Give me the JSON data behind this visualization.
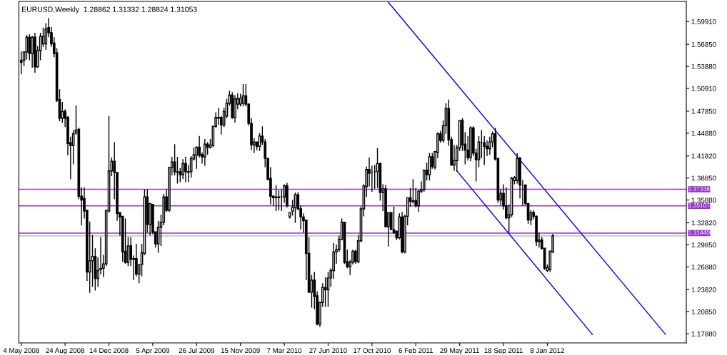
{
  "chart_data": {
    "type": "candlestick",
    "title": "EURUSD,Weekly  1.28862 1.31332 1.28824 1.31053",
    "x": [
      "2008-05-04",
      "2008-05-11",
      "2008-05-18",
      "2008-05-25",
      "2008-06-01",
      "2008-06-08",
      "2008-06-15",
      "2008-06-22",
      "2008-06-29",
      "2008-07-06",
      "2008-07-13",
      "2008-07-20",
      "2008-07-27",
      "2008-08-03",
      "2008-08-10",
      "2008-08-17",
      "2008-08-24",
      "2008-08-31",
      "2008-09-07",
      "2008-09-14",
      "2008-09-21",
      "2008-09-28",
      "2008-10-05",
      "2008-10-12",
      "2008-10-19",
      "2008-10-26",
      "2008-11-02",
      "2008-11-09",
      "2008-11-16",
      "2008-11-23",
      "2008-11-30",
      "2008-12-07",
      "2008-12-14",
      "2008-12-21",
      "2008-12-28",
      "2009-01-04",
      "2009-01-11",
      "2009-01-18",
      "2009-01-25",
      "2009-02-01",
      "2009-02-08",
      "2009-02-15",
      "2009-02-22",
      "2009-03-01",
      "2009-03-08",
      "2009-03-15",
      "2009-03-22",
      "2009-03-29",
      "2009-04-05",
      "2009-04-12",
      "2009-04-19",
      "2009-04-26",
      "2009-05-03",
      "2009-05-10",
      "2009-05-17",
      "2009-05-24",
      "2009-05-31",
      "2009-06-07",
      "2009-06-14",
      "2009-06-21",
      "2009-06-28",
      "2009-07-05",
      "2009-07-12",
      "2009-07-19",
      "2009-07-26",
      "2009-08-02",
      "2009-08-09",
      "2009-08-16",
      "2009-08-23",
      "2009-08-30",
      "2009-09-06",
      "2009-09-13",
      "2009-09-20",
      "2009-09-27",
      "2009-10-04",
      "2009-10-11",
      "2009-10-18",
      "2009-10-25",
      "2009-11-01",
      "2009-11-08",
      "2009-11-15",
      "2009-11-22",
      "2009-11-29",
      "2009-12-06",
      "2009-12-13",
      "2009-12-20",
      "2009-12-27",
      "2010-01-03",
      "2010-01-10",
      "2010-01-17",
      "2010-01-24",
      "2010-01-31",
      "2010-02-07",
      "2010-02-14",
      "2010-02-21",
      "2010-02-28",
      "2010-03-07",
      "2010-03-14",
      "2010-03-21",
      "2010-03-28",
      "2010-04-04",
      "2010-04-11",
      "2010-04-18",
      "2010-04-25",
      "2010-05-02",
      "2010-05-09",
      "2010-05-16",
      "2010-05-23",
      "2010-05-30",
      "2010-06-06",
      "2010-06-13",
      "2010-06-20",
      "2010-06-27",
      "2010-07-04",
      "2010-07-11",
      "2010-07-18",
      "2010-07-25",
      "2010-08-01",
      "2010-08-08",
      "2010-08-15",
      "2010-08-22",
      "2010-08-29",
      "2010-09-05",
      "2010-09-12",
      "2010-09-19",
      "2010-09-26",
      "2010-10-03",
      "2010-10-10",
      "2010-10-17",
      "2010-10-24",
      "2010-10-31",
      "2010-11-07",
      "2010-11-14",
      "2010-11-21",
      "2010-11-28",
      "2010-12-05",
      "2010-12-12",
      "2010-12-19",
      "2010-12-26",
      "2011-01-02",
      "2011-01-09",
      "2011-01-16",
      "2011-01-23",
      "2011-01-30",
      "2011-02-06",
      "2011-02-13",
      "2011-02-20",
      "2011-02-27",
      "2011-03-06",
      "2011-03-13",
      "2011-03-20",
      "2011-03-27",
      "2011-04-03",
      "2011-04-10",
      "2011-04-17",
      "2011-04-24",
      "2011-05-01",
      "2011-05-08",
      "2011-05-15",
      "2011-05-22",
      "2011-05-29",
      "2011-06-05",
      "2011-06-12",
      "2011-06-19",
      "2011-06-26",
      "2011-07-03",
      "2011-07-10",
      "2011-07-17",
      "2011-07-24",
      "2011-07-31",
      "2011-08-07",
      "2011-08-14",
      "2011-08-21",
      "2011-08-28",
      "2011-09-04",
      "2011-09-11",
      "2011-09-18",
      "2011-09-25",
      "2011-10-02",
      "2011-10-09",
      "2011-10-16",
      "2011-10-23",
      "2011-10-30",
      "2011-11-06",
      "2011-11-13",
      "2011-11-20",
      "2011-11-27",
      "2011-12-04",
      "2011-12-11",
      "2011-12-18",
      "2011-12-25",
      "2012-01-01",
      "2012-01-08",
      "2012-01-15",
      "2012-01-22"
    ],
    "ohlc": [
      [
        1.547,
        1.559,
        1.528,
        1.544
      ],
      [
        1.547,
        1.559,
        1.539,
        1.558
      ],
      [
        1.558,
        1.581,
        1.548,
        1.578
      ],
      [
        1.578,
        1.582,
        1.547,
        1.556
      ],
      [
        1.556,
        1.58,
        1.537,
        1.578
      ],
      [
        1.578,
        1.584,
        1.53,
        1.538
      ],
      [
        1.538,
        1.566,
        1.537,
        1.56
      ],
      [
        1.56,
        1.584,
        1.547,
        1.579
      ],
      [
        1.569,
        1.591,
        1.565,
        1.579
      ],
      [
        1.569,
        1.597,
        1.561,
        1.589
      ],
      [
        1.591,
        1.604,
        1.578,
        1.584
      ],
      [
        1.584,
        1.592,
        1.565,
        1.569
      ],
      [
        1.57,
        1.578,
        1.551,
        1.556
      ],
      [
        1.557,
        1.563,
        1.491,
        1.493
      ],
      [
        1.494,
        1.508,
        1.465,
        1.469
      ],
      [
        1.469,
        1.491,
        1.463,
        1.478
      ],
      [
        1.478,
        1.481,
        1.457,
        1.469
      ],
      [
        1.47,
        1.472,
        1.419,
        1.435
      ],
      [
        1.436,
        1.444,
        1.387,
        1.432
      ],
      [
        1.432,
        1.453,
        1.407,
        1.448
      ],
      [
        1.449,
        1.486,
        1.447,
        1.453
      ],
      [
        1.454,
        1.456,
        1.36,
        1.364
      ],
      [
        1.364,
        1.376,
        1.325,
        1.359
      ],
      [
        1.361,
        1.376,
        1.334,
        1.344
      ],
      [
        1.345,
        1.345,
        1.25,
        1.262
      ],
      [
        1.262,
        1.33,
        1.234,
        1.277
      ],
      [
        1.277,
        1.312,
        1.242,
        1.283
      ],
      [
        1.283,
        1.294,
        1.237,
        1.253
      ],
      [
        1.253,
        1.282,
        1.242,
        1.264
      ],
      [
        1.265,
        1.309,
        1.259,
        1.267
      ],
      [
        1.267,
        1.285,
        1.255,
        1.273
      ],
      [
        1.273,
        1.345,
        1.27,
        1.345
      ],
      [
        1.344,
        1.472,
        1.342,
        1.398
      ],
      [
        1.398,
        1.416,
        1.391,
        1.411
      ],
      [
        1.411,
        1.437,
        1.36,
        1.396
      ],
      [
        1.396,
        1.396,
        1.331,
        1.341
      ],
      [
        1.342,
        1.342,
        1.311,
        1.336
      ],
      [
        1.337,
        1.337,
        1.276,
        1.289
      ],
      [
        1.29,
        1.334,
        1.273,
        1.275
      ],
      [
        1.275,
        1.309,
        1.27,
        1.297
      ],
      [
        1.297,
        1.309,
        1.27,
        1.279
      ],
      [
        1.279,
        1.284,
        1.251,
        1.28
      ],
      [
        1.28,
        1.3,
        1.256,
        1.259
      ],
      [
        1.259,
        1.272,
        1.247,
        1.272
      ],
      [
        1.272,
        1.3,
        1.256,
        1.288
      ],
      [
        1.287,
        1.373,
        1.285,
        1.363
      ],
      [
        1.363,
        1.373,
        1.315,
        1.326
      ],
      [
        1.326,
        1.355,
        1.311,
        1.354
      ],
      [
        1.353,
        1.353,
        1.313,
        1.316
      ],
      [
        1.316,
        1.316,
        1.295,
        1.3
      ],
      [
        1.3,
        1.331,
        1.288,
        1.322
      ],
      [
        1.322,
        1.339,
        1.297,
        1.329
      ],
      [
        1.329,
        1.367,
        1.325,
        1.363
      ],
      [
        1.363,
        1.373,
        1.343,
        1.345
      ],
      [
        1.345,
        1.403,
        1.343,
        1.403
      ],
      [
        1.403,
        1.417,
        1.392,
        1.41
      ],
      [
        1.41,
        1.434,
        1.392,
        1.397
      ],
      [
        1.397,
        1.417,
        1.381,
        1.396
      ],
      [
        1.397,
        1.402,
        1.383,
        1.393
      ],
      [
        1.393,
        1.414,
        1.387,
        1.408
      ],
      [
        1.408,
        1.417,
        1.383,
        1.397
      ],
      [
        1.397,
        1.406,
        1.383,
        1.396
      ],
      [
        1.397,
        1.418,
        1.389,
        1.415
      ],
      [
        1.414,
        1.43,
        1.412,
        1.42
      ],
      [
        1.419,
        1.431,
        1.401,
        1.43
      ],
      [
        1.43,
        1.445,
        1.416,
        1.419
      ],
      [
        1.42,
        1.423,
        1.408,
        1.417
      ],
      [
        1.417,
        1.441,
        1.405,
        1.434
      ],
      [
        1.434,
        1.437,
        1.42,
        1.43
      ],
      [
        1.43,
        1.441,
        1.428,
        1.433
      ],
      [
        1.432,
        1.458,
        1.43,
        1.458
      ],
      [
        1.458,
        1.477,
        1.456,
        1.47
      ],
      [
        1.47,
        1.483,
        1.46,
        1.469
      ],
      [
        1.47,
        1.472,
        1.447,
        1.46
      ],
      [
        1.46,
        1.483,
        1.457,
        1.478
      ],
      [
        1.472,
        1.495,
        1.469,
        1.489
      ],
      [
        1.489,
        1.506,
        1.486,
        1.5
      ],
      [
        1.5,
        1.504,
        1.468,
        1.47
      ],
      [
        1.47,
        1.5,
        1.463,
        1.495
      ],
      [
        1.488,
        1.503,
        1.481,
        1.495
      ],
      [
        1.488,
        1.502,
        1.485,
        1.496
      ],
      [
        1.489,
        1.515,
        1.485,
        1.499
      ],
      [
        1.499,
        1.515,
        1.485,
        1.488
      ],
      [
        1.488,
        1.488,
        1.459,
        1.462
      ],
      [
        1.462,
        1.469,
        1.426,
        1.433
      ],
      [
        1.433,
        1.442,
        1.422,
        1.437
      ],
      [
        1.437,
        1.437,
        1.426,
        1.431
      ],
      [
        1.431,
        1.449,
        1.425,
        1.445
      ],
      [
        1.445,
        1.458,
        1.433,
        1.437
      ],
      [
        1.437,
        1.441,
        1.403,
        1.415
      ],
      [
        1.415,
        1.415,
        1.385,
        1.387
      ],
      [
        1.388,
        1.403,
        1.353,
        1.364
      ],
      [
        1.364,
        1.365,
        1.351,
        1.362
      ],
      [
        1.363,
        1.379,
        1.344,
        1.362
      ],
      [
        1.362,
        1.372,
        1.345,
        1.363
      ],
      [
        1.363,
        1.373,
        1.344,
        1.363
      ],
      [
        1.363,
        1.38,
        1.355,
        1.378
      ],
      [
        1.378,
        1.382,
        1.349,
        1.351
      ],
      [
        1.336,
        1.342,
        1.334,
        1.342
      ],
      [
        1.344,
        1.359,
        1.338,
        1.349
      ],
      [
        1.349,
        1.369,
        1.328,
        1.366
      ],
      [
        1.366,
        1.369,
        1.345,
        1.347
      ],
      [
        1.347,
        1.351,
        1.319,
        1.336
      ],
      [
        1.336,
        1.341,
        1.315,
        1.331
      ],
      [
        1.332,
        1.332,
        1.251,
        1.287
      ],
      [
        1.287,
        1.309,
        1.234,
        1.235
      ],
      [
        1.235,
        1.258,
        1.214,
        1.251
      ],
      [
        1.251,
        1.262,
        1.212,
        1.229
      ],
      [
        1.23,
        1.236,
        1.19,
        1.192
      ],
      [
        1.192,
        1.221,
        1.188,
        1.221
      ],
      [
        1.221,
        1.247,
        1.215,
        1.241
      ],
      [
        1.241,
        1.255,
        1.215,
        1.238
      ],
      [
        1.238,
        1.262,
        1.215,
        1.254
      ],
      [
        1.254,
        1.267,
        1.242,
        1.264
      ],
      [
        1.264,
        1.301,
        1.253,
        1.289
      ],
      [
        1.289,
        1.299,
        1.273,
        1.292
      ],
      [
        1.292,
        1.311,
        1.289,
        1.306
      ],
      [
        1.306,
        1.334,
        1.305,
        1.329
      ],
      [
        1.329,
        1.329,
        1.273,
        1.275
      ],
      [
        1.276,
        1.292,
        1.267,
        1.269
      ],
      [
        1.269,
        1.278,
        1.258,
        1.275
      ],
      [
        1.275,
        1.292,
        1.272,
        1.29
      ],
      [
        1.29,
        1.292,
        1.273,
        1.276
      ],
      [
        1.276,
        1.312,
        1.274,
        1.304
      ],
      [
        1.304,
        1.35,
        1.302,
        1.347
      ],
      [
        1.347,
        1.38,
        1.337,
        1.378
      ],
      [
        1.377,
        1.404,
        1.363,
        1.4
      ],
      [
        1.4,
        1.416,
        1.377,
        1.395
      ],
      [
        1.396,
        1.405,
        1.37,
        1.396
      ],
      [
        1.397,
        1.406,
        1.374,
        1.397
      ],
      [
        1.397,
        1.429,
        1.375,
        1.408
      ],
      [
        1.408,
        1.409,
        1.358,
        1.369
      ],
      [
        1.369,
        1.38,
        1.344,
        1.374
      ],
      [
        1.374,
        1.379,
        1.322,
        1.323
      ],
      [
        1.323,
        1.342,
        1.296,
        1.342
      ],
      [
        1.342,
        1.342,
        1.319,
        1.319
      ],
      [
        1.319,
        1.35,
        1.313,
        1.315
      ],
      [
        1.317,
        1.317,
        1.305,
        1.308
      ],
      [
        1.308,
        1.341,
        1.306,
        1.336
      ],
      [
        1.336,
        1.343,
        1.287,
        1.289
      ],
      [
        1.289,
        1.339,
        1.287,
        1.337
      ],
      [
        1.337,
        1.362,
        1.325,
        1.362
      ],
      [
        1.362,
        1.375,
        1.35,
        1.357
      ],
      [
        1.358,
        1.387,
        1.354,
        1.357
      ],
      [
        1.358,
        1.375,
        1.349,
        1.351
      ],
      [
        1.351,
        1.371,
        1.343,
        1.371
      ],
      [
        1.371,
        1.384,
        1.368,
        1.373
      ],
      [
        1.373,
        1.4,
        1.37,
        1.399
      ],
      [
        1.399,
        1.409,
        1.385,
        1.393
      ],
      [
        1.393,
        1.422,
        1.385,
        1.417
      ],
      [
        1.417,
        1.422,
        1.401,
        1.404
      ],
      [
        1.403,
        1.425,
        1.4,
        1.424
      ],
      [
        1.423,
        1.45,
        1.415,
        1.448
      ],
      [
        1.448,
        1.452,
        1.436,
        1.439
      ],
      [
        1.439,
        1.466,
        1.436,
        1.459
      ],
      [
        1.459,
        1.489,
        1.448,
        1.482
      ],
      [
        1.482,
        1.494,
        1.432,
        1.44
      ],
      [
        1.44,
        1.444,
        1.405,
        1.406
      ],
      [
        1.406,
        1.433,
        1.398,
        1.412
      ],
      [
        1.412,
        1.433,
        1.397,
        1.429
      ],
      [
        1.429,
        1.466,
        1.425,
        1.466
      ],
      [
        1.466,
        1.469,
        1.425,
        1.433
      ],
      [
        1.434,
        1.45,
        1.407,
        1.426
      ],
      [
        1.426,
        1.445,
        1.412,
        1.416
      ],
      [
        1.416,
        1.458,
        1.411,
        1.456
      ],
      [
        1.456,
        1.458,
        1.418,
        1.422
      ],
      [
        1.422,
        1.428,
        1.384,
        1.413
      ],
      [
        1.413,
        1.445,
        1.403,
        1.437
      ],
      [
        1.436,
        1.453,
        1.415,
        1.436
      ],
      [
        1.436,
        1.445,
        1.406,
        1.431
      ],
      [
        1.431,
        1.439,
        1.418,
        1.428
      ],
      [
        1.428,
        1.444,
        1.42,
        1.437
      ],
      [
        1.437,
        1.451,
        1.43,
        1.448
      ],
      [
        1.448,
        1.456,
        1.412,
        1.414
      ],
      [
        1.415,
        1.415,
        1.355,
        1.359
      ],
      [
        1.359,
        1.373,
        1.352,
        1.368
      ],
      [
        1.368,
        1.38,
        1.346,
        1.351
      ],
      [
        1.351,
        1.376,
        1.333,
        1.335
      ],
      [
        1.335,
        1.353,
        1.315,
        1.339
      ],
      [
        1.339,
        1.39,
        1.336,
        1.388
      ],
      [
        1.385,
        1.391,
        1.38,
        1.389
      ],
      [
        1.385,
        1.422,
        1.381,
        1.415
      ],
      [
        1.415,
        1.417,
        1.361,
        1.379
      ],
      [
        1.379,
        1.386,
        1.351,
        1.379
      ],
      [
        1.379,
        1.38,
        1.352,
        1.354
      ],
      [
        1.354,
        1.355,
        1.327,
        1.332
      ],
      [
        1.332,
        1.345,
        1.325,
        1.342
      ],
      [
        1.342,
        1.345,
        1.333,
        1.337
      ],
      [
        1.337,
        1.338,
        1.297,
        1.303
      ],
      [
        1.303,
        1.315,
        1.295,
        1.305
      ],
      [
        1.305,
        1.309,
        1.292,
        1.294
      ],
      [
        1.294,
        1.294,
        1.265,
        1.267
      ],
      [
        1.264,
        1.272,
        1.262,
        1.268
      ],
      [
        1.265,
        1.291,
        1.262,
        1.29
      ],
      [
        1.28862,
        1.31332,
        1.28824,
        1.31053
      ]
    ],
    "series": [
      {
        "type": "line",
        "color": "#0000ff",
        "x": [
          "2010-11-28",
          "2012-11-05"
        ],
        "values": [
          1.625,
          1.178
        ]
      },
      {
        "type": "line",
        "color": "#0000ff",
        "x": [
          "2011-05-22",
          "2012-05-02"
        ],
        "values": [
          1.398,
          1.178
        ]
      }
    ],
    "xlim": [
      "2008-04-28",
      "2012-12-28"
    ],
    "ylim": [
      1.1665,
      1.6262
    ],
    "xticks": [
      {
        "value": "2008-05-04",
        "label": "4 May 2008"
      },
      {
        "value": "2008-08-24",
        "label": "24 Aug 2008"
      },
      {
        "value": "2008-12-14",
        "label": "14 Dec 2008"
      },
      {
        "value": "2009-04-05",
        "label": "5 Apr 2009"
      },
      {
        "value": "2009-07-26",
        "label": "26 Jul 2009"
      },
      {
        "value": "2009-11-15",
        "label": "15 Nov 2009"
      },
      {
        "value": "2010-03-07",
        "label": "7 Mar 2010"
      },
      {
        "value": "2010-06-27",
        "label": "27 Jun 2010"
      },
      {
        "value": "2010-10-17",
        "label": "17 Oct 2010"
      },
      {
        "value": "2011-02-06",
        "label": "6 Feb 2011"
      },
      {
        "value": "2011-05-29",
        "label": "29 May 2011"
      },
      {
        "value": "2011-09-18",
        "label": "18 Sep 2011"
      },
      {
        "value": "2012-01-08",
        "label": "8 Jan 2012"
      }
    ],
    "yticks": [
      {
        "value": 1.5991,
        "label": "1.59910"
      },
      {
        "value": 1.5685,
        "label": "1.56850"
      },
      {
        "value": 1.5388,
        "label": "1.53880"
      },
      {
        "value": 1.5091,
        "label": "1.50910"
      },
      {
        "value": 1.4785,
        "label": "1.47850"
      },
      {
        "value": 1.4488,
        "label": "1.44880"
      },
      {
        "value": 1.4182,
        "label": "1.41820"
      },
      {
        "value": 1.3885,
        "label": "1.38850"
      },
      {
        "value": 1.3588,
        "label": "1.35880"
      },
      {
        "value": 1.3282,
        "label": "1.32820"
      },
      {
        "value": 1.2985,
        "label": "1.29850"
      },
      {
        "value": 1.2688,
        "label": "1.26880"
      },
      {
        "value": 1.2382,
        "label": "1.23820"
      },
      {
        "value": 1.2085,
        "label": "1.20850"
      },
      {
        "value": 1.1788,
        "label": "1.17880"
      }
    ],
    "ref_lines": [
      {
        "axis": "y",
        "value": 1.37338,
        "label": "1.37338",
        "color": "#9933cc"
      },
      {
        "axis": "y",
        "value": 1.35107,
        "label": "1.35107",
        "color": "#9933cc"
      },
      {
        "axis": "y",
        "value": 1.3144,
        "label": "1.31440",
        "color": "#9933cc"
      },
      {
        "axis": "y",
        "value": 1.31053,
        "color": "#c0c0c0"
      }
    ],
    "grid": false,
    "legend": false
  }
}
